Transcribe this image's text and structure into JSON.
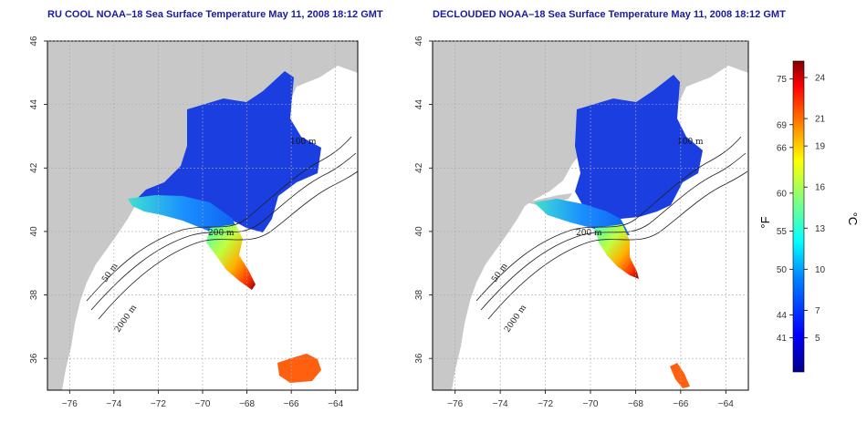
{
  "panels": [
    {
      "title": "RU COOL NOAA–18 Sea Surface Temperature May 11, 2008 18:12 GMT",
      "contour_labels": [
        "100 m",
        "200 m",
        "50 m",
        "2000 m"
      ]
    },
    {
      "title": "DECLOUDED NOAA–18 Sea Surface Temperature May 11, 2008 18:12 GMT",
      "contour_labels": [
        "100 m",
        "200 m",
        "50 m",
        "2000 m"
      ]
    }
  ],
  "axes": {
    "x_ticks": [
      "−76",
      "−74",
      "−72",
      "−70",
      "−68",
      "−66",
      "−64"
    ],
    "y_ticks": [
      "46",
      "44",
      "42",
      "40",
      "38",
      "36"
    ]
  },
  "colorbar": {
    "f_label": "°F",
    "c_label": "°C",
    "f_ticks": [
      "75",
      "69",
      "66",
      "60",
      "55",
      "50",
      "44",
      "41"
    ],
    "c_ticks": [
      "24",
      "21",
      "19",
      "16",
      "13",
      "10",
      "7",
      "5"
    ]
  },
  "colors": {
    "land": "#c8c8c8",
    "ocean": "#ffffff",
    "frame": "#000000",
    "grid": "#aaaaaa",
    "title": "#1a1aa0"
  }
}
